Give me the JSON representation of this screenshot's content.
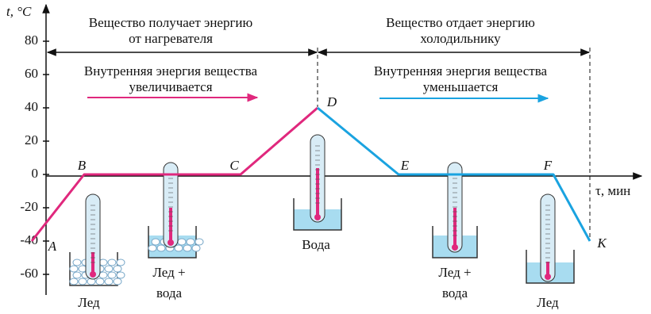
{
  "chart_data": {
    "type": "line",
    "y_label": "t, °C",
    "x_label": "τ, мин",
    "categories": [
      "A",
      "B",
      "C",
      "D",
      "E",
      "F",
      "K"
    ],
    "series": [
      {
        "color": "#e0287d",
        "values": [
          -40,
          0,
          0,
          40,
          null,
          null,
          null
        ]
      },
      {
        "color": "#1aa3e0",
        "values": [
          null,
          null,
          null,
          40,
          0,
          0,
          -40
        ]
      }
    ],
    "ylim": [
      -70,
      100
    ],
    "yticks": [
      -60,
      -40,
      -20,
      0,
      20,
      40,
      60,
      80
    ],
    "annotations": [
      [
        "Вещество получает энергию",
        "от нагревателя"
      ],
      [
        "Вещество отдает энергию",
        "холодильнику"
      ],
      [
        "Внутренняя энергия вещества",
        "увеличивается"
      ],
      [
        "Внутренняя энергия вещества",
        "уменьшается"
      ]
    ],
    "state_labels": [
      [
        "Лед"
      ],
      [
        "Лед +",
        "вода"
      ],
      [
        "Вода"
      ],
      [
        "Лед +",
        "вода"
      ],
      [
        "Лед"
      ]
    ]
  }
}
